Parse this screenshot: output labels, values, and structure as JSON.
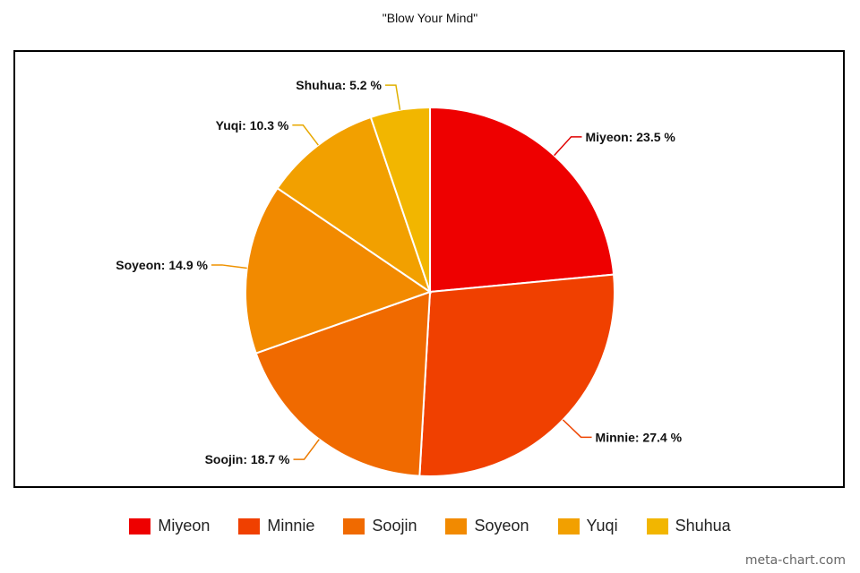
{
  "chart_data": {
    "type": "pie",
    "title": "\"Blow Your Mind\"",
    "unit": "%",
    "slices": [
      {
        "label": "Miyeon",
        "value": 23.5,
        "color": "#ee0000",
        "label_color": "#e00000"
      },
      {
        "label": "Minnie",
        "value": 27.4,
        "color": "#f04000",
        "label_color": "#ee4400"
      },
      {
        "label": "Soojin",
        "value": 18.7,
        "color": "#f06a00",
        "label_color": "#ec7a00"
      },
      {
        "label": "Soyeon",
        "value": 14.9,
        "color": "#f28a00",
        "label_color": "#ef9200"
      },
      {
        "label": "Yuqi",
        "value": 10.3,
        "color": "#f2a000",
        "label_color": "#e8a800"
      },
      {
        "label": "Shuhua",
        "value": 5.2,
        "color": "#f2b600",
        "label_color": "#e0b000"
      }
    ],
    "legend_position": "bottom"
  },
  "watermark": "meta-chart.com"
}
